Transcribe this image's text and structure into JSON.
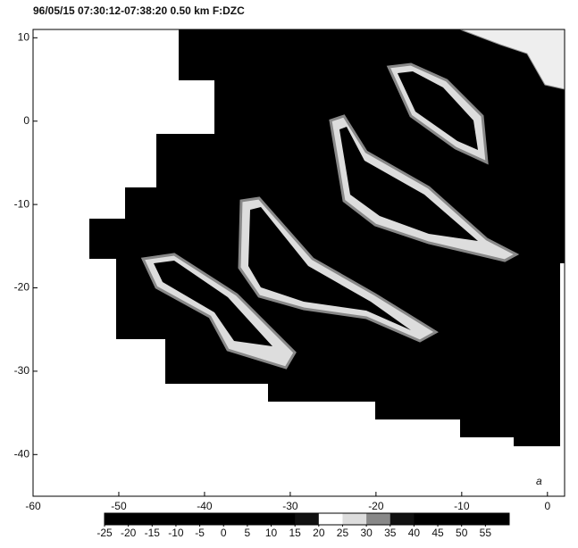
{
  "chart_data": {
    "type": "image",
    "title": "96/05/15 07:30:12-07:38:20   0.50 km   F:DZC",
    "xlim": [
      -60,
      2
    ],
    "ylim": [
      -45,
      11
    ],
    "xticks": [
      -60,
      -50,
      -40,
      -30,
      -20,
      -10,
      0
    ],
    "yticks": [
      10,
      0,
      -10,
      -20,
      -30,
      -40
    ],
    "annotation": "a",
    "colorbar": {
      "lim": [
        -25,
        60
      ],
      "ticks": [
        -25,
        -20,
        -15,
        -10,
        -5,
        0,
        5,
        10,
        15,
        20,
        25,
        30,
        35,
        40,
        45,
        50,
        55
      ],
      "colors": [
        "#000000",
        "#000000",
        "#000000",
        "#000000",
        "#000000",
        "#000000",
        "#000000",
        "#000000",
        "#111111",
        "#ffffff",
        "#dddddd",
        "#888888",
        "#111111",
        "#000000",
        "#000000",
        "#000000",
        "#000000"
      ]
    }
  }
}
